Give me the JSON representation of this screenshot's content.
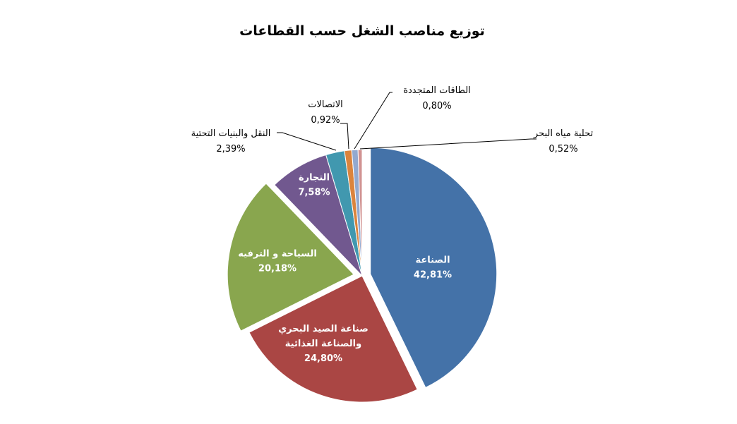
{
  "chart_data": {
    "type": "pie",
    "title": "توزيع مناصب الشغل حسب القطاعات",
    "slices": [
      {
        "label_lines": [
          "الصناعة"
        ],
        "value": 42.81,
        "value_label": "42,81%",
        "color": "#4472A8",
        "label_style": "inside",
        "exploded": true
      },
      {
        "label_lines": [
          "صناعة الصيد البحري",
          "والصناعة الغذائية"
        ],
        "value": 24.8,
        "value_label": "24,80%",
        "color": "#AA4644",
        "label_style": "inside",
        "exploded": false
      },
      {
        "label_lines": [
          "السياحة و الترفيه"
        ],
        "value": 20.18,
        "value_label": "20,18%",
        "color": "#89A64E",
        "label_style": "inside",
        "exploded": true
      },
      {
        "label_lines": [
          "التجارة"
        ],
        "value": 7.58,
        "value_label": "7,58%",
        "color": "#71588F",
        "label_style": "inside",
        "exploded": false
      },
      {
        "label_lines": [
          "النقل والبنيات التحتية"
        ],
        "value": 2.39,
        "value_label": "2,39%",
        "color": "#4198AF",
        "label_style": "outside",
        "exploded": false
      },
      {
        "label_lines": [
          "الاتصالات"
        ],
        "value": 0.92,
        "value_label": "0,92%",
        "color": "#DB843D",
        "label_style": "outside",
        "exploded": false
      },
      {
        "label_lines": [
          "الطاقات المتجددة"
        ],
        "value": 0.8,
        "value_label": "0,80%",
        "color": "#93A9CF",
        "label_style": "outside",
        "exploded": false
      },
      {
        "label_lines": [
          "تحلية مياه البحر"
        ],
        "value": 0.52,
        "value_label": "0,52%",
        "color": "#D19392",
        "label_style": "outside",
        "exploded": false
      }
    ],
    "start_angle": "12 o'clock",
    "direction": "clockwise",
    "legend": "none"
  }
}
